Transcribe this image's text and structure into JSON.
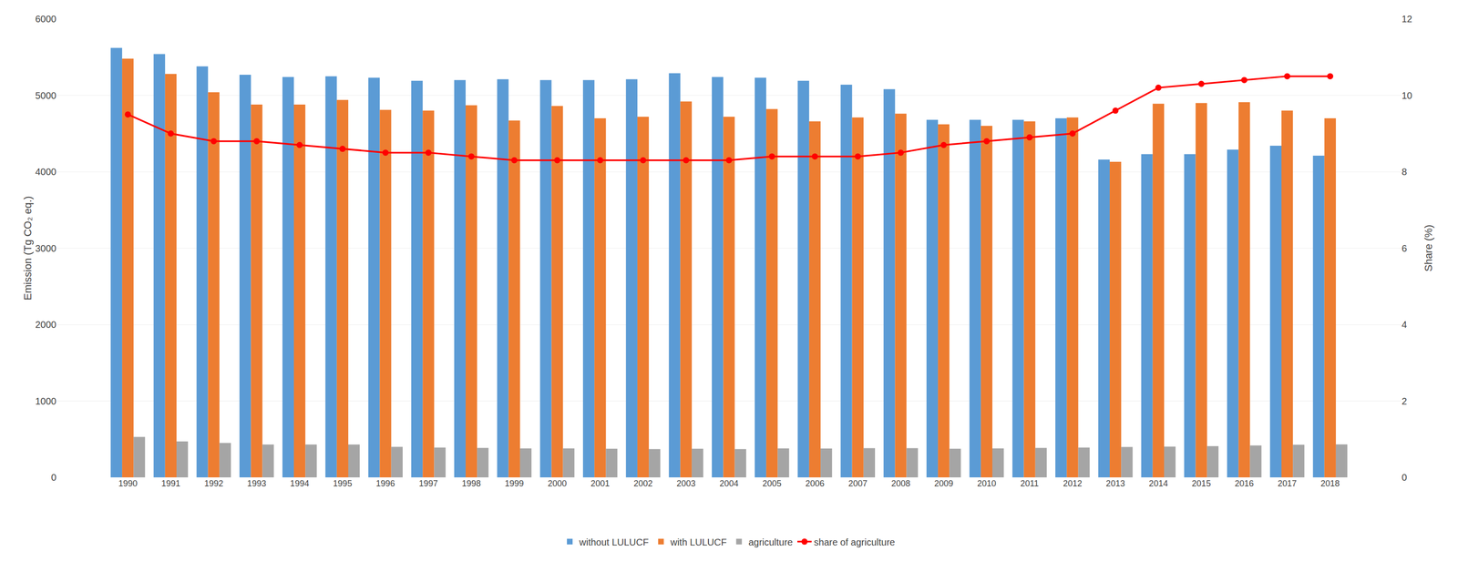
{
  "chart_data": {
    "type": "bar",
    "categories": [
      "1990",
      "1991",
      "1992",
      "1993",
      "1994",
      "1995",
      "1996",
      "1997",
      "1998",
      "1999",
      "2000",
      "2001",
      "2002",
      "2003",
      "2004",
      "2005",
      "2006",
      "2007",
      "2008",
      "2009",
      "2010",
      "2011",
      "2012",
      "2013",
      "2014",
      "2015",
      "2016",
      "2017",
      "2018"
    ],
    "series": [
      {
        "name": "without LULUCF",
        "type": "bar",
        "color": "#5B9BD5",
        "values": [
          5620,
          5540,
          5380,
          5270,
          5240,
          5250,
          5230,
          5190,
          5200,
          5210,
          5200,
          5200,
          5210,
          5290,
          5240,
          5230,
          5190,
          5140,
          5080,
          4680,
          4680,
          4680,
          4700,
          4160,
          4230,
          4230,
          4290,
          4340,
          4210
        ]
      },
      {
        "name": "with LULUCF",
        "type": "bar",
        "color": "#ED7D31",
        "values": [
          5480,
          5280,
          5040,
          4880,
          4880,
          4940,
          4810,
          4800,
          4870,
          4670,
          4860,
          4700,
          4720,
          4920,
          4720,
          4820,
          4660,
          4710,
          4760,
          4620,
          4600,
          4660,
          4710,
          4130,
          4890,
          4900,
          4910,
          4800,
          4700
        ]
      },
      {
        "name": "agriculture",
        "type": "bar",
        "color": "#A5A5A5",
        "values": [
          530,
          470,
          450,
          430,
          430,
          430,
          400,
          390,
          385,
          380,
          380,
          375,
          370,
          375,
          370,
          380,
          378,
          382,
          382,
          375,
          380,
          385,
          390,
          398,
          402,
          408,
          418,
          428,
          432
        ]
      },
      {
        "name": "share of agriculture",
        "type": "line",
        "axis": "y2",
        "color": "#FF0000",
        "marker": "circle",
        "line_style": "solid",
        "values": [
          9.5,
          9.0,
          8.8,
          8.8,
          8.7,
          8.6,
          8.5,
          8.5,
          8.4,
          8.3,
          8.3,
          8.3,
          8.3,
          8.3,
          8.3,
          8.4,
          8.4,
          8.4,
          8.5,
          8.7,
          8.8,
          8.9,
          9.0,
          9.6,
          10.2,
          10.3,
          10.4,
          10.5,
          10.5
        ]
      }
    ],
    "ylabel": "Emission (Tg CO₂ eq.)",
    "y2label": "Share (%)",
    "ylim": [
      0,
      6000
    ],
    "yticks": [
      0,
      1000,
      2000,
      3000,
      4000,
      5000,
      6000
    ],
    "y2lim": [
      0,
      12
    ],
    "y2ticks": [
      0,
      2,
      4,
      6,
      8,
      10,
      12
    ],
    "grid": true,
    "legend": "bottom"
  }
}
